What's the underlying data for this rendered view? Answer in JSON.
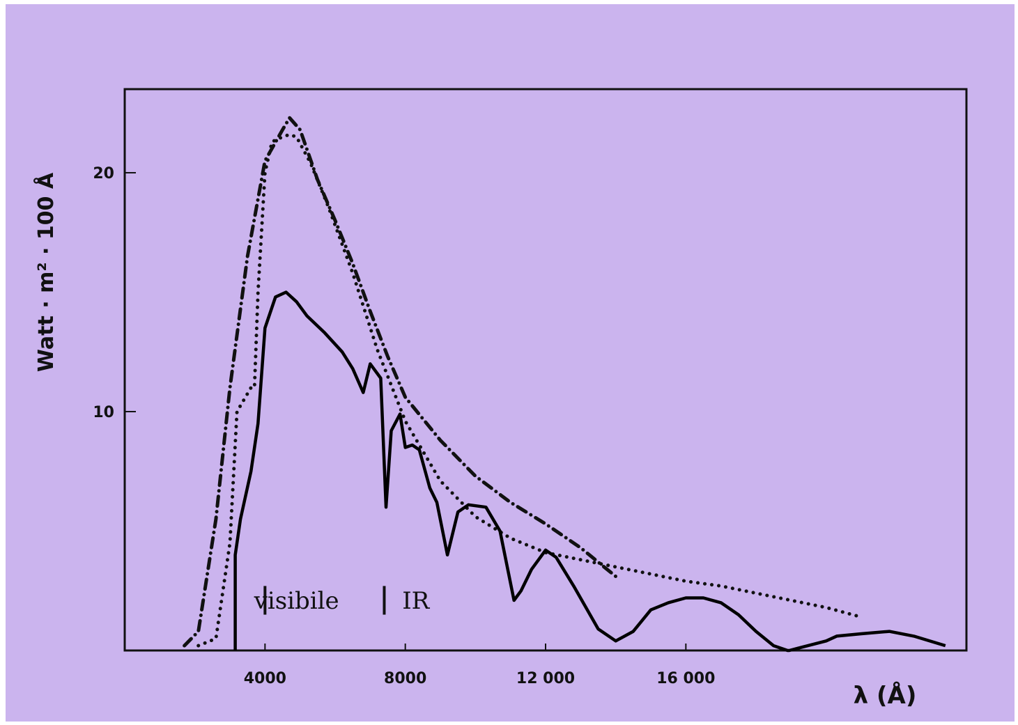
{
  "chart_data": {
    "type": "line",
    "title": "",
    "xlabel": "λ (Å)",
    "ylabel": "Watt · m² · 100 Å",
    "xlim": [
      0,
      24000
    ],
    "ylim": [
      0,
      23.5
    ],
    "x_ticks": [
      {
        "value": 4000,
        "label": "4000"
      },
      {
        "value": 8000,
        "label": "8000"
      },
      {
        "value": 12000,
        "label": "12 000"
      },
      {
        "value": 16000,
        "label": "16 000"
      }
    ],
    "y_ticks": [
      {
        "value": 10,
        "label": "10"
      },
      {
        "value": 20,
        "label": "20"
      }
    ],
    "grid": false,
    "legend": "none",
    "annotations": [
      {
        "text": "visibile",
        "x": 4900,
        "y": 2.1
      },
      {
        "text": "IR",
        "x": 8300,
        "y": 2.1
      }
    ],
    "region_markers": [
      {
        "x": 4000,
        "y_from": 1.5,
        "y_to": 2.7
      },
      {
        "x": 7400,
        "y_from": 1.5,
        "y_to": 2.7
      }
    ],
    "series": [
      {
        "style": "dotted",
        "color": "#111111",
        "x": [
          2100,
          2600,
          3000,
          3200,
          3600,
          3700,
          3800,
          4000,
          4200,
          4500,
          4700,
          4900,
          5300,
          5800,
          6500,
          7200,
          8000,
          9000,
          10000,
          11000,
          12000,
          13000,
          14000,
          15000,
          16000,
          17000,
          18000,
          19000,
          20000,
          21000
        ],
        "y": [
          0.2,
          0.5,
          4.5,
          10,
          11,
          11,
          15,
          20,
          21.3,
          21.5,
          21.6,
          21.5,
          20.4,
          18.6,
          15.8,
          12.6,
          9.6,
          7.1,
          5.6,
          4.7,
          4.1,
          3.8,
          3.5,
          3.2,
          2.9,
          2.7,
          2.4,
          2.1,
          1.8,
          1.4
        ]
      },
      {
        "style": "dash-dot",
        "color": "#111111",
        "x": [
          1700,
          2100,
          2600,
          3000,
          3500,
          4000,
          4500,
          4700,
          5000,
          5500,
          6000,
          6500,
          7000,
          7500,
          8000,
          9000,
          10000,
          11000,
          12000,
          13000,
          14000
        ],
        "y": [
          0.2,
          0.8,
          5.5,
          11,
          16.5,
          20.5,
          21.8,
          22.3,
          21.8,
          19.7,
          18,
          16.2,
          14.2,
          12.3,
          10.6,
          8.8,
          7.3,
          6.2,
          5.3,
          4.3,
          3.1
        ]
      },
      {
        "style": "solid",
        "color": "#000000",
        "x": [
          3150,
          3150,
          3300,
          3600,
          3800,
          4000,
          4300,
          4600,
          4900,
          5200,
          5700,
          6200,
          6500,
          6800,
          7000,
          7300,
          7450,
          7600,
          7850,
          8000,
          8200,
          8400,
          8700,
          8900,
          9200,
          9500,
          9800,
          10300,
          10700,
          11100,
          11300,
          11600,
          12000,
          12300,
          12800,
          13500,
          14000,
          14500,
          15000,
          15500,
          16000,
          16500,
          17000,
          17500,
          18000,
          18500,
          18900,
          18950,
          18950,
          20000,
          20300,
          21000,
          21800,
          22500,
          23400
        ],
        "y": [
          0,
          4,
          5.5,
          7.5,
          9.5,
          13.5,
          14.8,
          15,
          14.6,
          14,
          13.3,
          12.5,
          11.8,
          10.8,
          12,
          11.4,
          6,
          9.2,
          9.9,
          8.5,
          8.6,
          8.4,
          6.8,
          6.2,
          4,
          5.8,
          6.1,
          6,
          5,
          2.1,
          2.5,
          3.4,
          4.2,
          3.9,
          2.7,
          0.9,
          0.4,
          0.8,
          1.7,
          2,
          2.2,
          2.2,
          2.0,
          1.5,
          0.8,
          0.2,
          0,
          0,
          0,
          0.4,
          0.6,
          0.7,
          0.8,
          0.6,
          0.2
        ]
      }
    ]
  }
}
